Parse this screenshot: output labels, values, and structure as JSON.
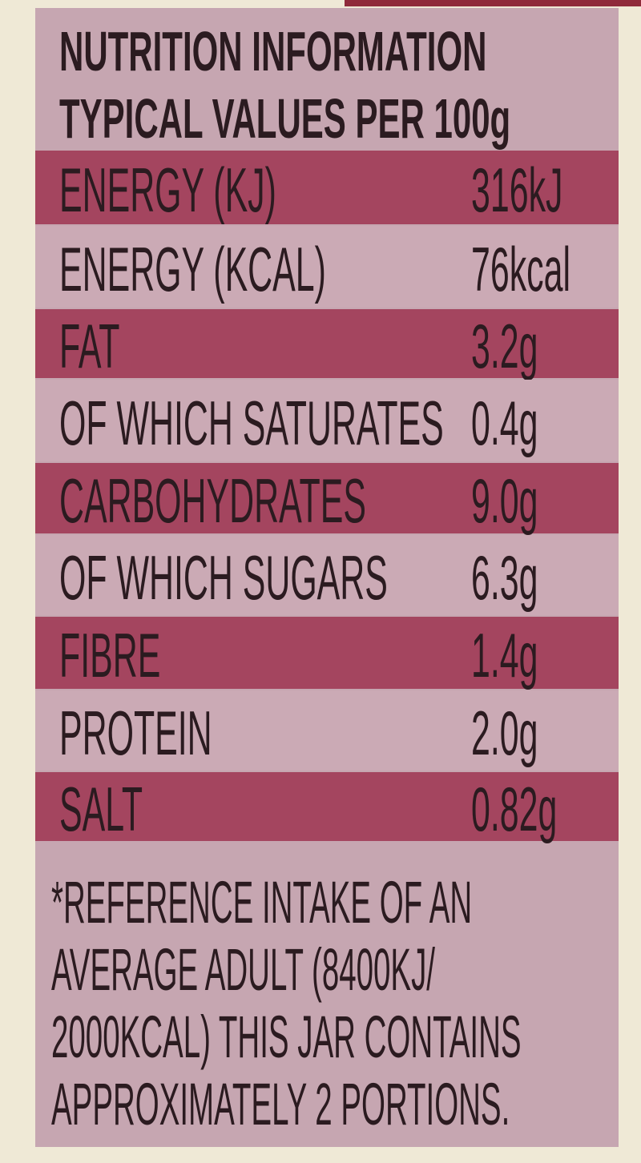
{
  "header": {
    "title": [
      "NUTRITION INFORMATION",
      "TYPICAL VALUES PER 100g"
    ]
  },
  "table": {
    "rows": [
      [
        "ENERGY (KJ)",
        "316kJ"
      ],
      [
        "ENERGY (KCAL)",
        "76kcal"
      ],
      [
        "FAT",
        "3.2g"
      ],
      [
        "OF WHICH SATURATES",
        "0.4g"
      ],
      [
        "CARBOHYDRATES",
        "9.0g"
      ],
      [
        "OF WHICH SUGARS",
        "6.3g"
      ],
      [
        "FIBRE",
        "1.4g"
      ],
      [
        "PROTEIN",
        "2.0g"
      ],
      [
        "SALT",
        "0.82g"
      ]
    ]
  },
  "footnote": [
    "*REFERENCE INTAKE OF AN",
    "AVERAGE ADULT (8400KJ/",
    "2000KCAL) THIS JAR CONTAINS",
    "APPROXIMATELY 2 PORTIONS."
  ]
}
